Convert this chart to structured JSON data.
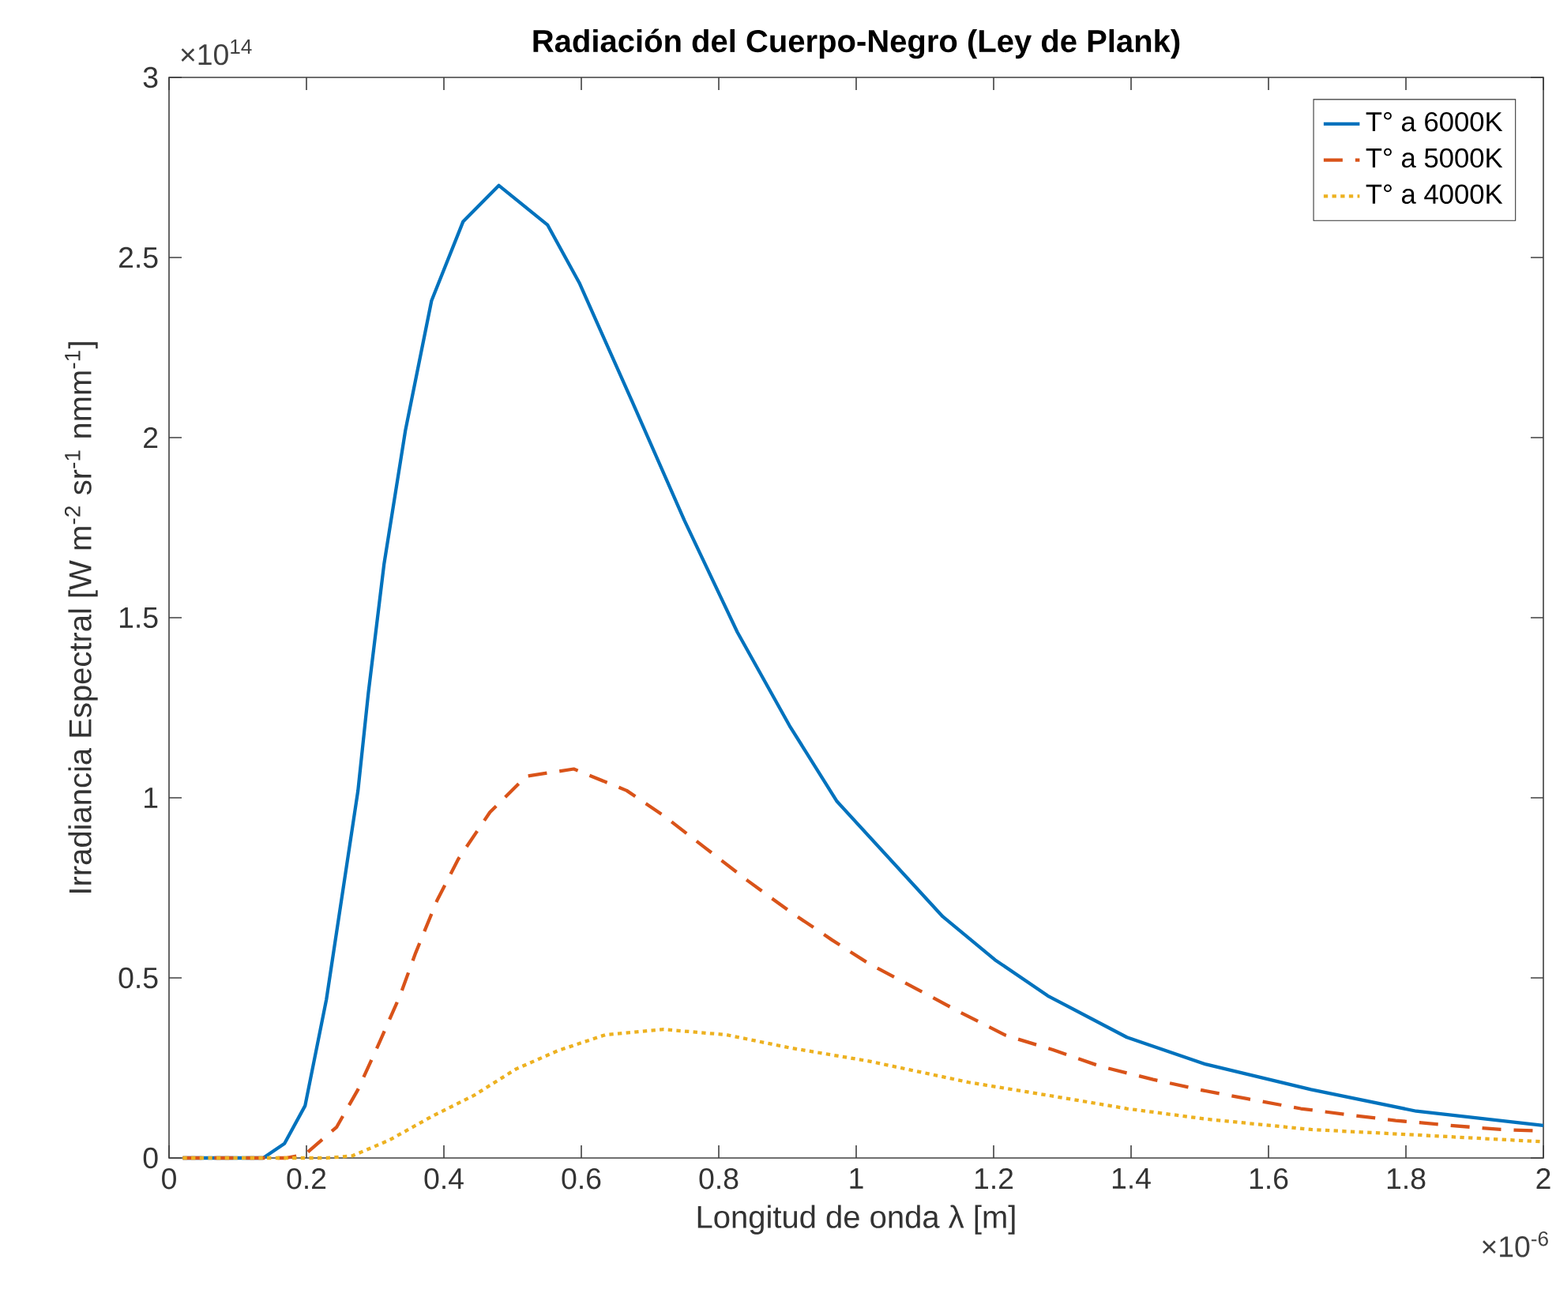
{
  "chart_data": {
    "type": "line",
    "title": "Radiación del Cuerpo-Negro (Ley de Plank)",
    "xlabel": "Longitud de onda λ [m]",
    "ylabel": "Irradiancia Espectral [W m$^{-2}$ sr$^{-1}$ nmm$^{-1}$]",
    "annotations": [
      "×10$^{14}$",
      "×10$^{-6}$"
    ],
    "xlim": [
      0,
      2
    ],
    "ylim": [
      0,
      3
    ],
    "xticks": [
      0,
      0.2,
      0.4,
      0.6,
      0.8,
      1,
      1.2,
      1.4,
      1.6,
      1.8,
      2
    ],
    "yticks": [
      0,
      0.5,
      1,
      1.5,
      2,
      2.5,
      3
    ],
    "grid": false,
    "legend": "top right",
    "marker": "none",
    "series": [
      {
        "name": "T° a 6000K",
        "color": "#0072bd",
        "line_style": "solid",
        "x": [
          0.02,
          0.137,
          0.168,
          0.198,
          0.229,
          0.252,
          0.275,
          0.29,
          0.313,
          0.344,
          0.382,
          0.428,
          0.48,
          0.551,
          0.597,
          0.674,
          0.75,
          0.827,
          0.903,
          0.972,
          1.049,
          1.126,
          1.202,
          1.279,
          1.394,
          1.509,
          1.662,
          1.815,
          2
        ],
        "values": [
          0,
          0,
          0.04,
          0.145,
          0.44,
          0.73,
          1.02,
          1.29,
          1.65,
          2.02,
          2.38,
          2.6,
          2.7,
          2.59,
          2.43,
          2.1,
          1.77,
          1.46,
          1.2,
          0.99,
          0.83,
          0.67,
          0.55,
          0.45,
          0.335,
          0.26,
          0.19,
          0.13,
          0.09
        ]
      },
      {
        "name": "T° a 5000K",
        "color": "#d95319",
        "line_style": "dashed",
        "x": [
          0.02,
          0.17,
          0.198,
          0.244,
          0.275,
          0.306,
          0.336,
          0.359,
          0.39,
          0.421,
          0.467,
          0.52,
          0.589,
          0.666,
          0.72,
          0.781,
          0.842,
          0.903,
          0.965,
          1.018,
          1.087,
          1.156,
          1.218,
          1.287,
          1.356,
          1.432,
          1.501,
          1.57,
          1.647,
          1.716,
          1.785,
          1.861,
          1.938,
          2
        ],
        "values": [
          0,
          0,
          0.01,
          0.086,
          0.19,
          0.32,
          0.45,
          0.57,
          0.715,
          0.83,
          0.96,
          1.06,
          1.08,
          1.02,
          0.95,
          0.86,
          0.77,
          0.685,
          0.605,
          0.54,
          0.47,
          0.4,
          0.34,
          0.3,
          0.254,
          0.218,
          0.189,
          0.164,
          0.137,
          0.12,
          0.104,
          0.091,
          0.079,
          0.075
        ]
      },
      {
        "name": "T° a 4000K",
        "color": "#edb120",
        "line_style": "dotted",
        "x": [
          0.02,
          0.23,
          0.267,
          0.321,
          0.382,
          0.444,
          0.505,
          0.566,
          0.635,
          0.72,
          0.811,
          0.903,
          1.018,
          1.164,
          1.279,
          1.394,
          1.509,
          1.662,
          1.815,
          2
        ],
        "values": [
          0,
          0,
          0.006,
          0.05,
          0.115,
          0.174,
          0.247,
          0.298,
          0.342,
          0.357,
          0.342,
          0.306,
          0.269,
          0.21,
          0.174,
          0.137,
          0.108,
          0.079,
          0.064,
          0.045
        ]
      }
    ]
  }
}
